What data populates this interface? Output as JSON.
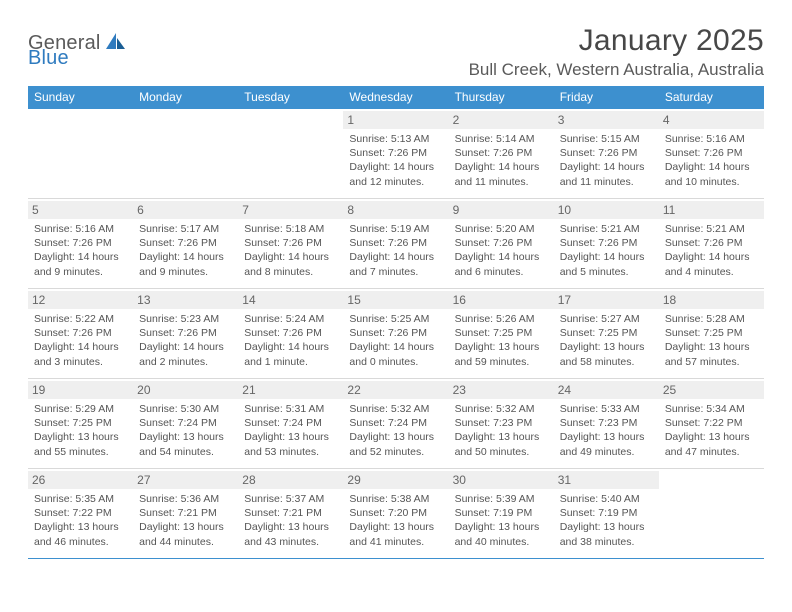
{
  "brand": {
    "name1": "General",
    "name2": "Blue"
  },
  "title": "January 2025",
  "location": "Bull Creek, Western Australia, Australia",
  "colors": {
    "header_bg": "#3d90cf",
    "header_fg": "#ffffff",
    "daynum_bg": "#efefef",
    "border": "#3d90cf",
    "separator": "#d9d9d9",
    "text": "#555555",
    "title": "#474747"
  },
  "weekdays": [
    "Sunday",
    "Monday",
    "Tuesday",
    "Wednesday",
    "Thursday",
    "Friday",
    "Saturday"
  ],
  "weeks": [
    [
      null,
      null,
      null,
      {
        "d": "1",
        "sr": "5:13 AM",
        "ss": "7:26 PM",
        "dl": "14 hours and 12 minutes."
      },
      {
        "d": "2",
        "sr": "5:14 AM",
        "ss": "7:26 PM",
        "dl": "14 hours and 11 minutes."
      },
      {
        "d": "3",
        "sr": "5:15 AM",
        "ss": "7:26 PM",
        "dl": "14 hours and 11 minutes."
      },
      {
        "d": "4",
        "sr": "5:16 AM",
        "ss": "7:26 PM",
        "dl": "14 hours and 10 minutes."
      }
    ],
    [
      {
        "d": "5",
        "sr": "5:16 AM",
        "ss": "7:26 PM",
        "dl": "14 hours and 9 minutes."
      },
      {
        "d": "6",
        "sr": "5:17 AM",
        "ss": "7:26 PM",
        "dl": "14 hours and 9 minutes."
      },
      {
        "d": "7",
        "sr": "5:18 AM",
        "ss": "7:26 PM",
        "dl": "14 hours and 8 minutes."
      },
      {
        "d": "8",
        "sr": "5:19 AM",
        "ss": "7:26 PM",
        "dl": "14 hours and 7 minutes."
      },
      {
        "d": "9",
        "sr": "5:20 AM",
        "ss": "7:26 PM",
        "dl": "14 hours and 6 minutes."
      },
      {
        "d": "10",
        "sr": "5:21 AM",
        "ss": "7:26 PM",
        "dl": "14 hours and 5 minutes."
      },
      {
        "d": "11",
        "sr": "5:21 AM",
        "ss": "7:26 PM",
        "dl": "14 hours and 4 minutes."
      }
    ],
    [
      {
        "d": "12",
        "sr": "5:22 AM",
        "ss": "7:26 PM",
        "dl": "14 hours and 3 minutes."
      },
      {
        "d": "13",
        "sr": "5:23 AM",
        "ss": "7:26 PM",
        "dl": "14 hours and 2 minutes."
      },
      {
        "d": "14",
        "sr": "5:24 AM",
        "ss": "7:26 PM",
        "dl": "14 hours and 1 minute."
      },
      {
        "d": "15",
        "sr": "5:25 AM",
        "ss": "7:26 PM",
        "dl": "14 hours and 0 minutes."
      },
      {
        "d": "16",
        "sr": "5:26 AM",
        "ss": "7:25 PM",
        "dl": "13 hours and 59 minutes."
      },
      {
        "d": "17",
        "sr": "5:27 AM",
        "ss": "7:25 PM",
        "dl": "13 hours and 58 minutes."
      },
      {
        "d": "18",
        "sr": "5:28 AM",
        "ss": "7:25 PM",
        "dl": "13 hours and 57 minutes."
      }
    ],
    [
      {
        "d": "19",
        "sr": "5:29 AM",
        "ss": "7:25 PM",
        "dl": "13 hours and 55 minutes."
      },
      {
        "d": "20",
        "sr": "5:30 AM",
        "ss": "7:24 PM",
        "dl": "13 hours and 54 minutes."
      },
      {
        "d": "21",
        "sr": "5:31 AM",
        "ss": "7:24 PM",
        "dl": "13 hours and 53 minutes."
      },
      {
        "d": "22",
        "sr": "5:32 AM",
        "ss": "7:24 PM",
        "dl": "13 hours and 52 minutes."
      },
      {
        "d": "23",
        "sr": "5:32 AM",
        "ss": "7:23 PM",
        "dl": "13 hours and 50 minutes."
      },
      {
        "d": "24",
        "sr": "5:33 AM",
        "ss": "7:23 PM",
        "dl": "13 hours and 49 minutes."
      },
      {
        "d": "25",
        "sr": "5:34 AM",
        "ss": "7:22 PM",
        "dl": "13 hours and 47 minutes."
      }
    ],
    [
      {
        "d": "26",
        "sr": "5:35 AM",
        "ss": "7:22 PM",
        "dl": "13 hours and 46 minutes."
      },
      {
        "d": "27",
        "sr": "5:36 AM",
        "ss": "7:21 PM",
        "dl": "13 hours and 44 minutes."
      },
      {
        "d": "28",
        "sr": "5:37 AM",
        "ss": "7:21 PM",
        "dl": "13 hours and 43 minutes."
      },
      {
        "d": "29",
        "sr": "5:38 AM",
        "ss": "7:20 PM",
        "dl": "13 hours and 41 minutes."
      },
      {
        "d": "30",
        "sr": "5:39 AM",
        "ss": "7:19 PM",
        "dl": "13 hours and 40 minutes."
      },
      {
        "d": "31",
        "sr": "5:40 AM",
        "ss": "7:19 PM",
        "dl": "13 hours and 38 minutes."
      },
      null
    ]
  ],
  "labels": {
    "sunrise": "Sunrise:",
    "sunset": "Sunset:",
    "daylight": "Daylight:"
  }
}
